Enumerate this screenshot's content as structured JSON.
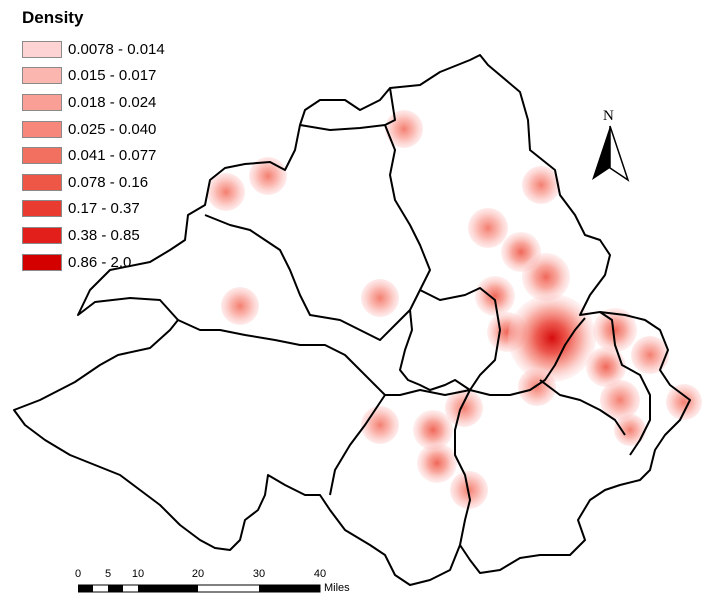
{
  "legend": {
    "title": "Density",
    "classes": [
      {
        "label": "0.0078 - 0.014",
        "color": "#fdd3d3"
      },
      {
        "label": "0.015 - 0.017",
        "color": "#fbb6b0"
      },
      {
        "label": "0.018 - 0.024",
        "color": "#f99f95"
      },
      {
        "label": "0.025 - 0.040",
        "color": "#f6877a"
      },
      {
        "label": "0.041 - 0.077",
        "color": "#f27060"
      },
      {
        "label": "0.078 - 0.16",
        "color": "#ee5646"
      },
      {
        "label": "0.17 - 0.37",
        "color": "#e93b2f"
      },
      {
        "label": "0.38 - 0.85",
        "color": "#e21f1b"
      },
      {
        "label": "0.86 - 2.0",
        "color": "#d40000"
      }
    ]
  },
  "north_arrow": {
    "label": "N",
    "icon": "north-arrow-icon"
  },
  "scale_bar": {
    "ticks": [
      "0",
      "5",
      "10",
      "20",
      "30",
      "40"
    ],
    "units": "Miles"
  }
}
